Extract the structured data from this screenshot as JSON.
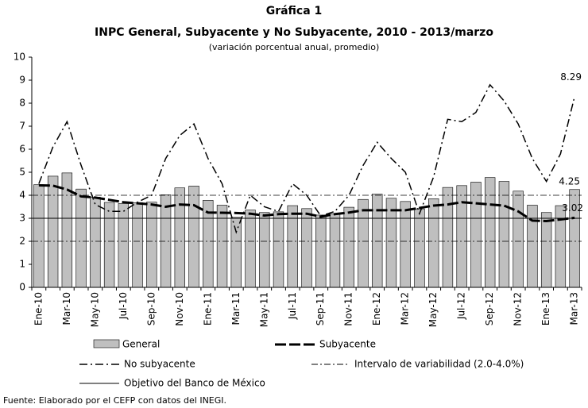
{
  "chart_data": {
    "type": "bar-line",
    "title": "Gráfica 1",
    "subtitle": "INPC General, Subyacente y No Subyacente, 2010 - 2013/marzo",
    "note": "(variación porcentual anual, promedio)",
    "source": "Fuente: Elaborado por el CEFP con datos del INEGI.",
    "categories": [
      "Ene-10",
      null,
      "Mar-10",
      null,
      "May-10",
      null,
      "Jul-10",
      null,
      "Sep-10",
      null,
      "Nov-10",
      null,
      "Ene-11",
      null,
      "Mar-11",
      null,
      "May-11",
      null,
      "Jul-11",
      null,
      "Sep-11",
      null,
      "Nov-11",
      null,
      "Ene-12",
      null,
      "Mar-12",
      null,
      "May-12",
      null,
      "Jul-12",
      null,
      "Sep-12",
      null,
      "Nov-12",
      null,
      "Ene-13",
      null,
      "Mar-13"
    ],
    "series": [
      {
        "name": "General",
        "type": "bar",
        "color": "#bfbfbf",
        "values": [
          4.46,
          4.83,
          4.97,
          4.27,
          3.92,
          3.69,
          3.64,
          3.68,
          3.7,
          4.02,
          4.32,
          4.4,
          3.78,
          3.57,
          3.04,
          3.36,
          3.25,
          3.28,
          3.55,
          3.42,
          3.14,
          3.2,
          3.48,
          3.82,
          4.05,
          3.87,
          3.73,
          3.41,
          3.85,
          4.34,
          4.42,
          4.57,
          4.77,
          4.6,
          4.18,
          3.57,
          3.25,
          3.55,
          4.25
        ]
      },
      {
        "name": "Subyacente",
        "type": "line",
        "color": "#000000",
        "values": [
          4.43,
          4.42,
          4.25,
          3.95,
          3.9,
          3.8,
          3.7,
          3.65,
          3.6,
          3.5,
          3.6,
          3.57,
          3.25,
          3.24,
          3.23,
          3.2,
          3.12,
          3.18,
          3.2,
          3.2,
          3.07,
          3.18,
          3.25,
          3.35,
          3.35,
          3.35,
          3.35,
          3.45,
          3.55,
          3.6,
          3.7,
          3.65,
          3.6,
          3.55,
          3.3,
          2.9,
          2.88,
          2.95,
          3.02
        ]
      },
      {
        "name": "No subyacente",
        "type": "line",
        "color": "#000000",
        "values": [
          4.5,
          6.1,
          7.2,
          5.3,
          3.6,
          3.3,
          3.3,
          3.7,
          4.0,
          5.6,
          6.6,
          7.1,
          5.6,
          4.5,
          2.4,
          4.0,
          3.5,
          3.3,
          4.5,
          4.0,
          3.1,
          3.3,
          4.0,
          5.3,
          6.3,
          5.6,
          5.0,
          3.2,
          4.8,
          7.3,
          7.2,
          7.6,
          8.8,
          8.1,
          7.1,
          5.6,
          4.6,
          5.8,
          8.29
        ]
      }
    ],
    "band": {
      "name": "Intervalo de variabilidad (2.0-4.0%)",
      "values": [
        2,
        4
      ]
    },
    "target": {
      "name": "Objetivo del Banco de México",
      "value": 3
    },
    "ylim": [
      0,
      10
    ],
    "yticks": [
      0,
      1,
      2,
      3,
      4,
      5,
      6,
      7,
      8,
      9,
      10
    ],
    "grid": false
  }
}
